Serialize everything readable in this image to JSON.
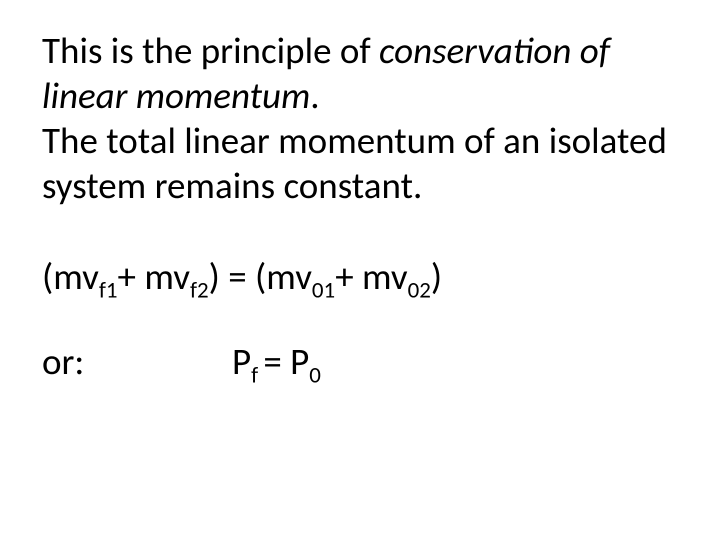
{
  "text": {
    "line1_pre": "This is the principle of ",
    "line1_em": "conservation of linear momentum",
    "line1_post": ".",
    "line2": "The total linear momentum of an isolated system remains constant.",
    "or_label": "or:"
  },
  "equation_main": {
    "open1": "(",
    "t1": "mv",
    "s1": "f1",
    "plus1": "+ ",
    "t2": "mv",
    "s2": "f2",
    "close1": ")",
    "eq": " = ",
    "open2": "(",
    "t3": "mv",
    "s3": "01",
    "plus2": "+ ",
    "t4": "mv",
    "s4": "02",
    "close2": ")"
  },
  "equation_short": {
    "P1": "P",
    "s1": "f ",
    "eq": "= ",
    "P2": "P",
    "s2": "0"
  },
  "style": {
    "background_color": "#ffffff",
    "text_color": "#000000",
    "font_family": "Calibri",
    "base_fontsize_pt": 28,
    "subscript_scale": 0.62
  }
}
